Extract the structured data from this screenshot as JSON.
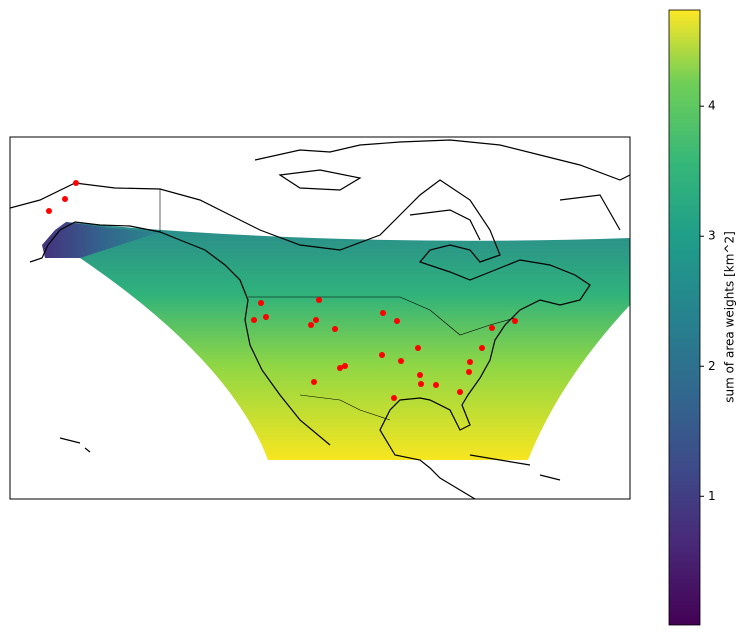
{
  "chart_data": {
    "type": "map",
    "colorbar": {
      "label": "sum of area weights [km^2]",
      "lim": [
        0.01,
        4.74
      ],
      "ticks": [
        1,
        2,
        3,
        4
      ],
      "colormap": "viridis"
    },
    "point_color": "#ff0000"
  }
}
